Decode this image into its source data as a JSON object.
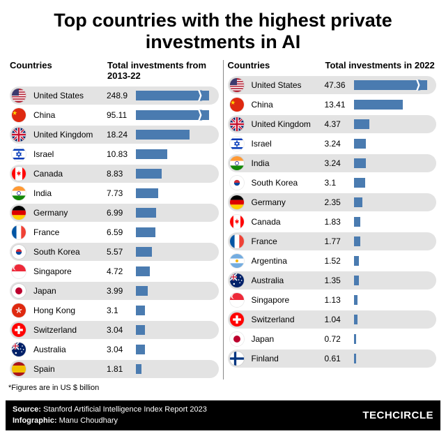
{
  "title": "Top countries with the highest private investments in AI",
  "title_fontsize": 27,
  "header_fontsize": 13,
  "row_fontsize": 12,
  "bar_color": "#4a7bb0",
  "alt_row_color": "#e3e3e3",
  "break_symbol_color": "#4a7bb0",
  "panel_left": {
    "header_country": "Countries",
    "header_value": "Total investments from 2013-22",
    "max_bar_value": 25,
    "rows": [
      {
        "country": "United States",
        "flag": "us",
        "value": 248.9,
        "broken": true
      },
      {
        "country": "China",
        "flag": "cn",
        "value": 95.11,
        "broken": true
      },
      {
        "country": "United Kingdom",
        "flag": "gb",
        "value": 18.24
      },
      {
        "country": "Israel",
        "flag": "il",
        "value": 10.83
      },
      {
        "country": "Canada",
        "flag": "ca",
        "value": 8.83
      },
      {
        "country": "India",
        "flag": "in",
        "value": 7.73
      },
      {
        "country": "Germany",
        "flag": "de",
        "value": 6.99
      },
      {
        "country": "France",
        "flag": "fr",
        "value": 6.59
      },
      {
        "country": "South Korea",
        "flag": "kr",
        "value": 5.57
      },
      {
        "country": "Singapore",
        "flag": "sg",
        "value": 4.72
      },
      {
        "country": "Japan",
        "flag": "jp",
        "value": 3.99
      },
      {
        "country": "Hong Kong",
        "flag": "hk",
        "value": 3.1
      },
      {
        "country": "Switzerland",
        "flag": "ch",
        "value": 3.04
      },
      {
        "country": "Australia",
        "flag": "au",
        "value": 3.04
      },
      {
        "country": "Spain",
        "flag": "es",
        "value": 1.81
      }
    ]
  },
  "panel_right": {
    "header_country": "Countries",
    "header_value": "Total investments in 2022",
    "max_bar_value": 20,
    "rows": [
      {
        "country": "United States",
        "flag": "us",
        "value": 47.36,
        "broken": true
      },
      {
        "country": "China",
        "flag": "cn",
        "value": 13.41
      },
      {
        "country": "United Kingdom",
        "flag": "gb",
        "value": 4.37
      },
      {
        "country": "Israel",
        "flag": "il",
        "value": 3.24
      },
      {
        "country": "India",
        "flag": "in",
        "value": 3.24
      },
      {
        "country": "South Korea",
        "flag": "kr",
        "value": 3.1
      },
      {
        "country": "Germany",
        "flag": "de",
        "value": 2.35
      },
      {
        "country": "Canada",
        "flag": "ca",
        "value": 1.83
      },
      {
        "country": "France",
        "flag": "fr",
        "value": 1.77
      },
      {
        "country": "Argentina",
        "flag": "ar",
        "value": 1.52
      },
      {
        "country": "Australia",
        "flag": "au",
        "value": 1.35
      },
      {
        "country": "Singapore",
        "flag": "sg",
        "value": 1.13
      },
      {
        "country": "Switzerland",
        "flag": "ch",
        "value": 1.04
      },
      {
        "country": "Japan",
        "flag": "jp",
        "value": 0.72
      },
      {
        "country": "Finland",
        "flag": "fi",
        "value": 0.61
      }
    ]
  },
  "footnote": "*Figures are in US $ billion",
  "footnote_fontsize": 11,
  "footer": {
    "source_label": "Source:",
    "source_text": "Stanford Artificial Intelligence Index Report 2023",
    "infographic_label": "Infographic:",
    "infographic_text": "Manu Choudhary",
    "brand": "TECHCIRCLE",
    "fontsize": 11
  }
}
